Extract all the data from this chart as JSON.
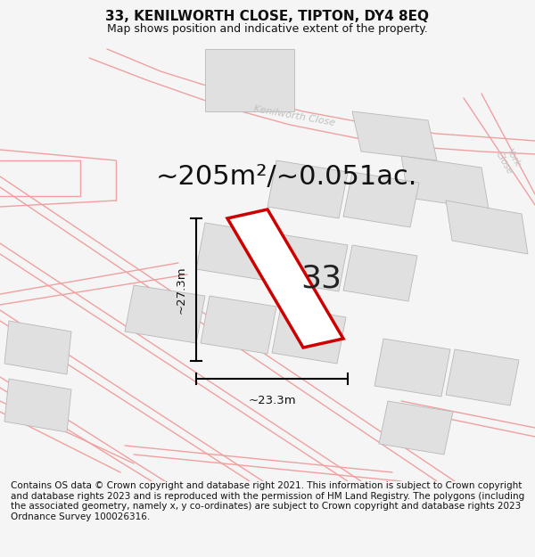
{
  "title": "33, KENILWORTH CLOSE, TIPTON, DY4 8EQ",
  "subtitle": "Map shows position and indicative extent of the property.",
  "footer": "Contains OS data © Crown copyright and database right 2021. This information is subject to Crown copyright and database rights 2023 and is reproduced with the permission of HM Land Registry. The polygons (including the associated geometry, namely x, y co-ordinates) are subject to Crown copyright and database rights 2023 Ordnance Survey 100026316.",
  "area_text": "~205m²/~0.051ac.",
  "number_label": "33",
  "dim_width": "~23.3m",
  "dim_height": "~27.3m",
  "bg_color": "#f5f5f5",
  "map_bg": "#ffffff",
  "plot_outline_color": "#cc0000",
  "road_color": "#f0a0a0",
  "building_color": "#e0e0e0",
  "road_label_color": "#c0c0c0",
  "title_fontsize": 11,
  "subtitle_fontsize": 9,
  "footer_fontsize": 7.5,
  "area_fontsize": 22,
  "number_fontsize": 26
}
